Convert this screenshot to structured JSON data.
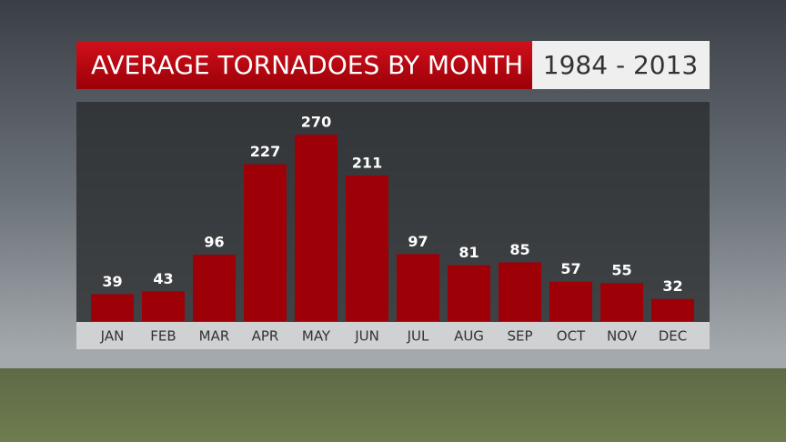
{
  "chart_data": {
    "type": "bar",
    "title": "AVERAGE TORNADOES BY MONTH",
    "subtitle": "1984 - 2013",
    "categories": [
      "JAN",
      "FEB",
      "MAR",
      "APR",
      "MAY",
      "JUN",
      "JUL",
      "AUG",
      "SEP",
      "OCT",
      "NOV",
      "DEC"
    ],
    "values": [
      39,
      43,
      96,
      227,
      270,
      211,
      97,
      81,
      85,
      57,
      55,
      32
    ],
    "color": "#9e0008"
  }
}
